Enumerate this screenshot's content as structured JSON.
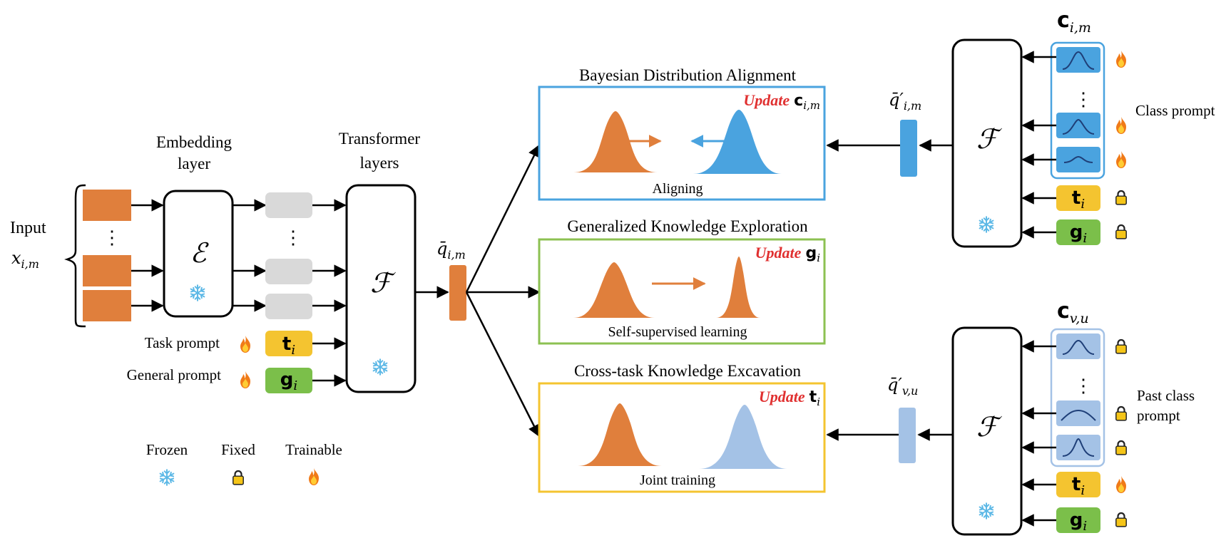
{
  "input": {
    "label": "Input",
    "symbol": "x",
    "sub": "i,m"
  },
  "embedding": {
    "title_line1": "Embedding",
    "title_line2": "layer",
    "symbol": "ℰ"
  },
  "transformer": {
    "title_line1": "Transformer",
    "title_line2": "layers",
    "symbol": "ℱ"
  },
  "prompts": {
    "task_label": "Task prompt",
    "general_label": "General prompt",
    "t": "t",
    "t_sub": "i",
    "g": "g",
    "g_sub": "i"
  },
  "query": {
    "symbol": "q̄",
    "sub": "i,m"
  },
  "panels": {
    "bayes": {
      "title": "Bayesian Distribution Alignment",
      "update_word": "Update",
      "update_symbol": "c",
      "update_sub": "i,m",
      "caption": "Aligning"
    },
    "general": {
      "title": "Generalized Knowledge Exploration",
      "update_word": "Update",
      "update_symbol": "g",
      "update_sub": "i",
      "caption": "Self-supervised learning"
    },
    "cross": {
      "title": "Cross-task Knowledge Excavation",
      "update_word": "Update",
      "update_symbol": "t",
      "update_sub": "i",
      "caption": "Joint training"
    }
  },
  "top_right": {
    "c_symbol": "c",
    "c_sub": "i,m",
    "query_symbol": "q̄′",
    "query_sub": "i,m",
    "class_prompt_label": "Class prompt",
    "F": "ℱ"
  },
  "bottom_right": {
    "c_symbol": "c",
    "c_sub": "v,u",
    "query_symbol": "q̄′",
    "query_sub": "v,u",
    "past_label_line1": "Past class",
    "past_label_line2": "prompt",
    "F": "ℱ"
  },
  "legend": {
    "frozen": "Frozen",
    "fixed": "Fixed",
    "trainable": "Trainable"
  },
  "colors": {
    "orange": "#e07f3c",
    "blue": "#4aa3df",
    "light_blue": "#a4c2e6",
    "gray_token": "#d9d9d9",
    "yellow": "#f4c430",
    "green": "#7bbf4a",
    "panel_blue": "#4aa3df",
    "panel_green": "#8cc152",
    "panel_yellow": "#f4c430",
    "update_red": "#e03030",
    "snow": "#5cb8e6"
  },
  "icons": [
    "snowflake-icon",
    "lock-icon",
    "flame-icon"
  ]
}
